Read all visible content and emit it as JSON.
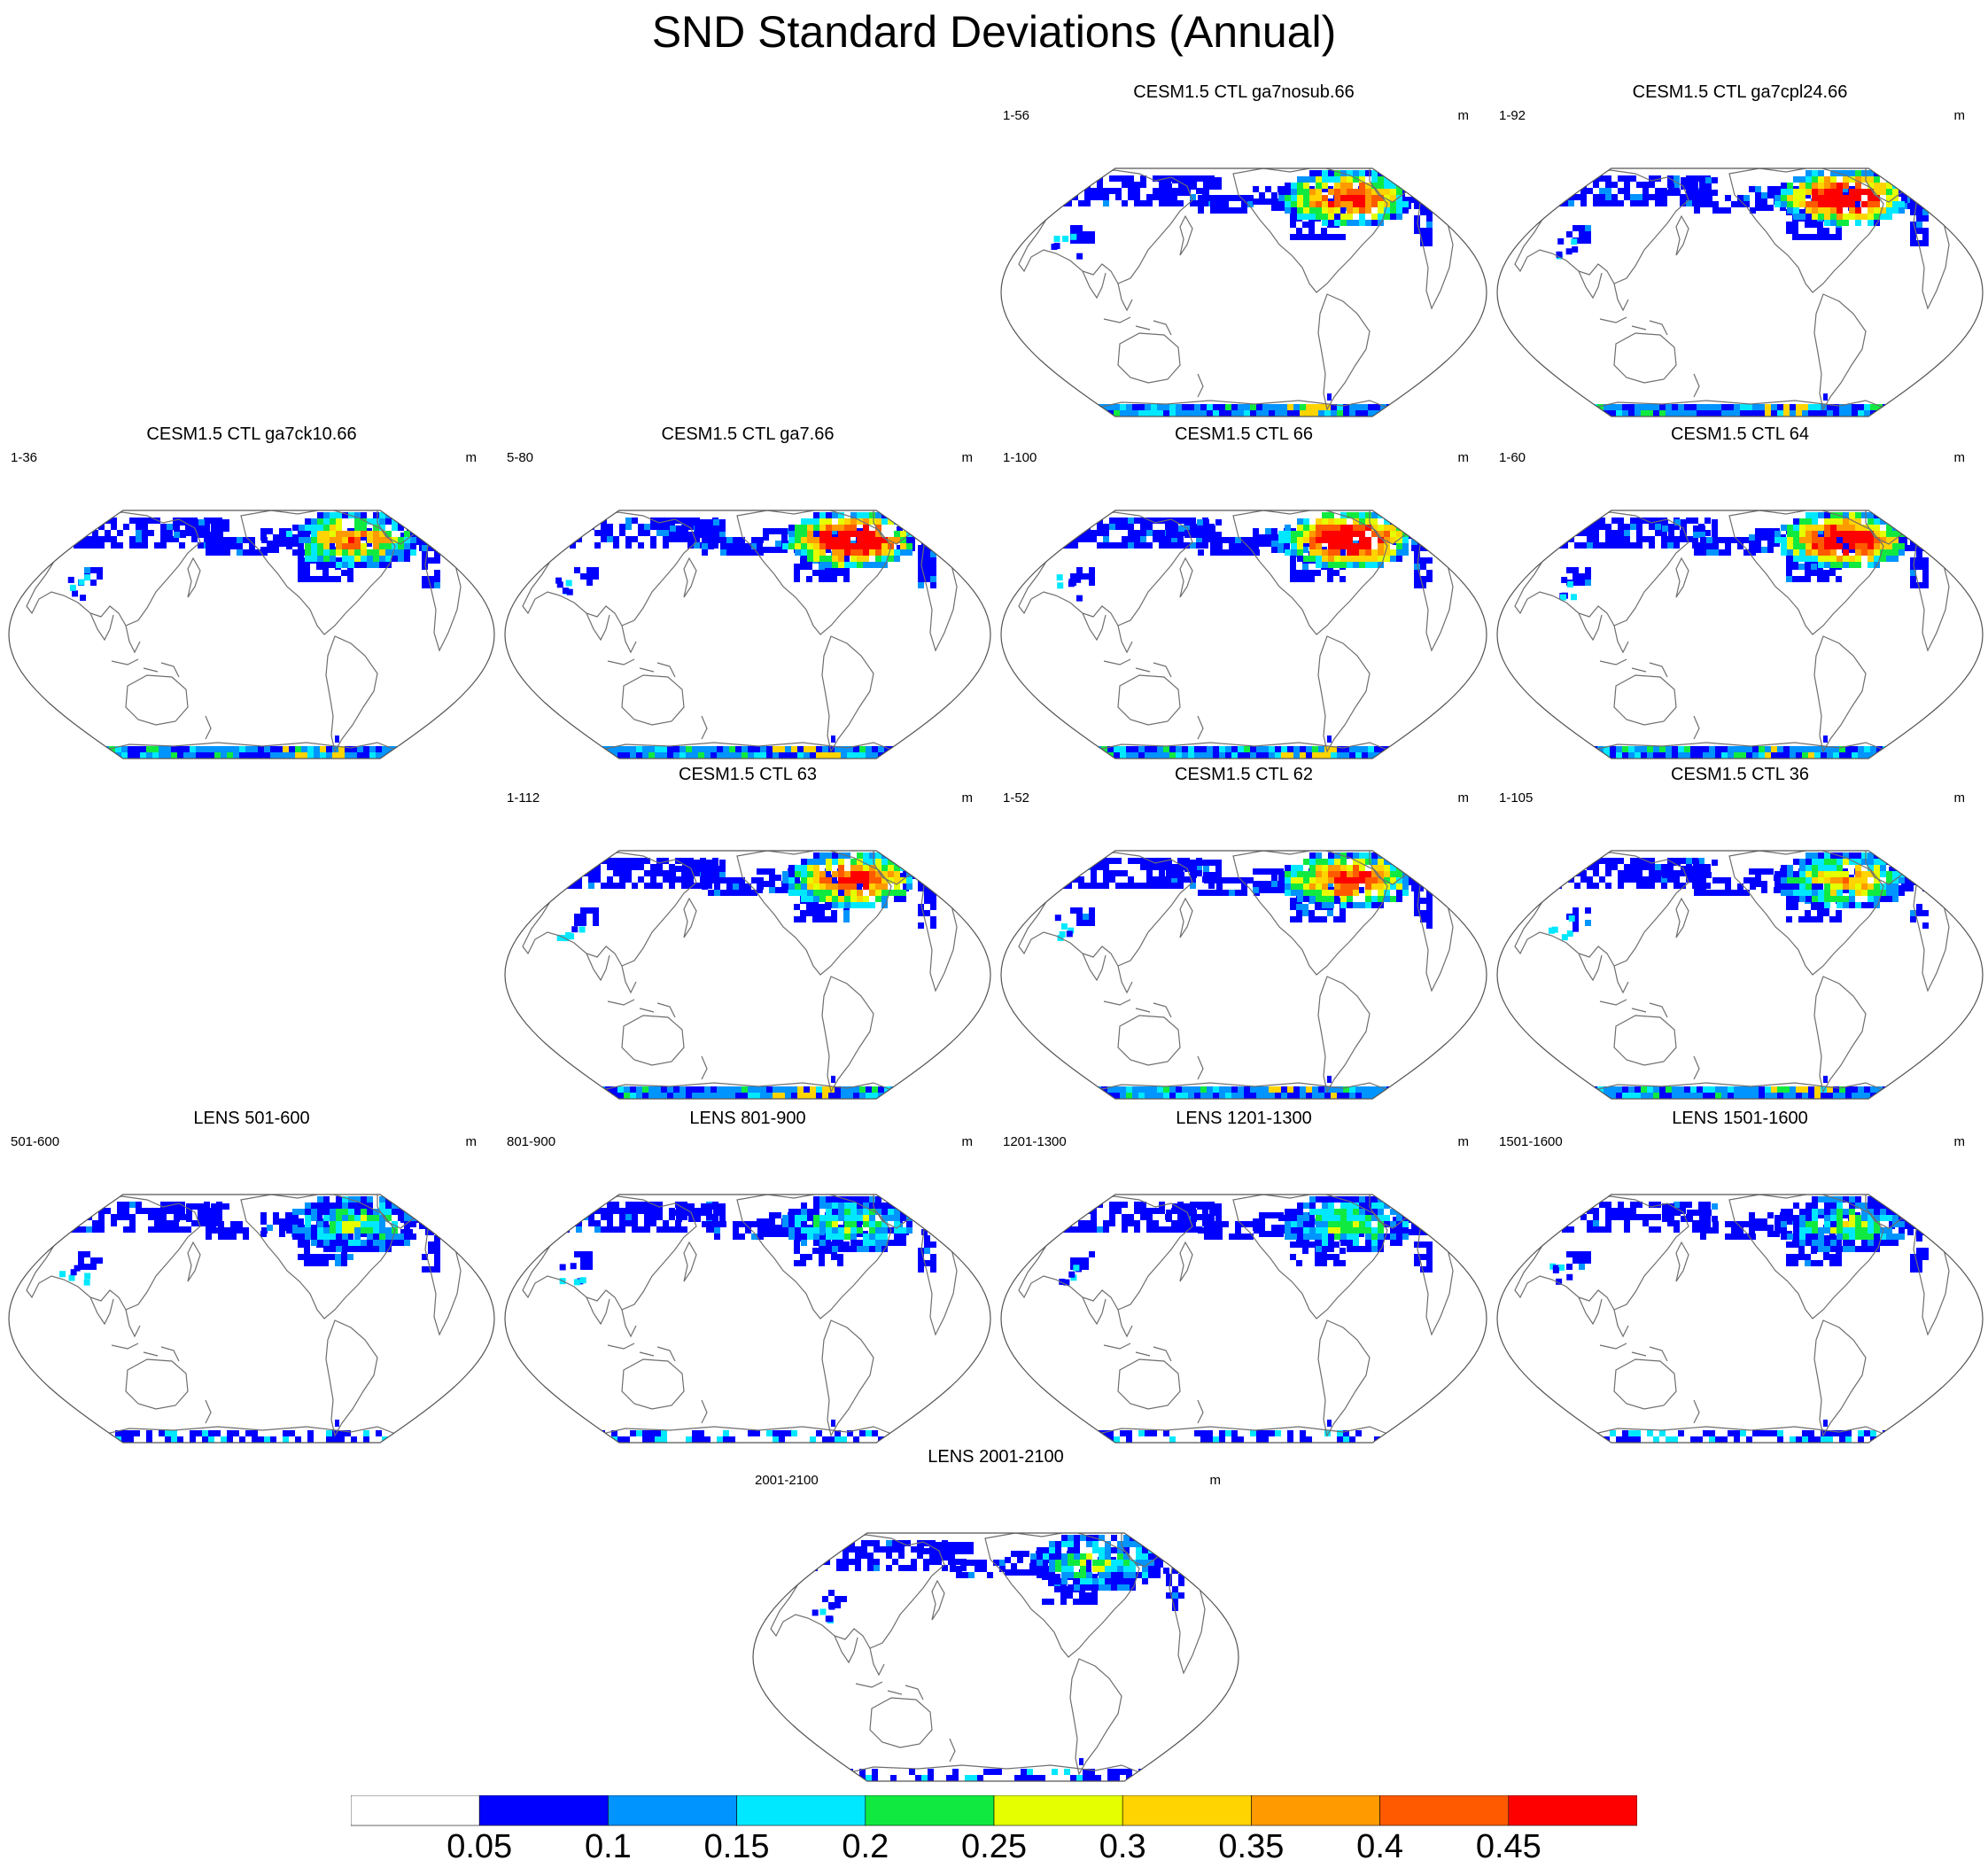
{
  "title": "SND Standard Deviations (Annual)",
  "colors": {
    "levels": [
      "#ffffff",
      "#0000ff",
      "#0094ff",
      "#00e8ff",
      "#10ea40",
      "#e5ff00",
      "#ffd400",
      "#ff9a00",
      "#ff5a00",
      "#ff0000"
    ],
    "coastline": "#6e6e6e"
  },
  "colorbar": {
    "labels": [
      "0.05",
      "0.1",
      "0.15",
      "0.2",
      "0.25",
      "0.3",
      "0.35",
      "0.4",
      "0.45"
    ]
  },
  "projection": "Robinson, centered on the Pacific",
  "panels": [
    {
      "id": "ga7nosub66",
      "title": "CESM1.5 CTL ga7nosub.66",
      "years": "1-56",
      "units": "m",
      "row": 0,
      "col": 2,
      "intensity": 1.0,
      "antarctica": "strong"
    },
    {
      "id": "ga7cpl2466",
      "title": "CESM1.5 CTL ga7cpl24.66",
      "years": "1-92",
      "units": "m",
      "row": 0,
      "col": 3,
      "intensity": 1.25,
      "antarctica": "strong"
    },
    {
      "id": "ga7ck1066",
      "title": "CESM1.5 CTL ga7ck10.66",
      "years": "1-36",
      "units": "m",
      "row": 1,
      "col": 0,
      "intensity": 0.8,
      "antarctica": "strong"
    },
    {
      "id": "ga766",
      "title": "CESM1.5 CTL ga7.66",
      "years": "5-80",
      "units": "m",
      "row": 1,
      "col": 1,
      "intensity": 1.3,
      "antarctica": "strong"
    },
    {
      "id": "ctl66",
      "title": "CESM1.5 CTL 66",
      "years": "1-100",
      "units": "m",
      "row": 1,
      "col": 2,
      "intensity": 1.3,
      "antarctica": "strong"
    },
    {
      "id": "ctl64",
      "title": "CESM1.5 CTL 64",
      "years": "1-60",
      "units": "m",
      "row": 1,
      "col": 3,
      "intensity": 1.2,
      "antarctica": "strong"
    },
    {
      "id": "ctl63",
      "title": "CESM1.5 CTL 63",
      "years": "1-112",
      "units": "m",
      "row": 2,
      "col": 1,
      "intensity": 1.0,
      "antarctica": "strong"
    },
    {
      "id": "ctl62",
      "title": "CESM1.5 CTL 62",
      "years": "1-52",
      "units": "m",
      "row": 2,
      "col": 2,
      "intensity": 1.0,
      "antarctica": "strong"
    },
    {
      "id": "ctl36",
      "title": "CESM1.5 CTL 36",
      "years": "1-105",
      "units": "m",
      "row": 2,
      "col": 3,
      "intensity": 0.7,
      "antarctica": "strong"
    },
    {
      "id": "lens501",
      "title": "LENS 501-600",
      "years": "501-600",
      "units": "m",
      "row": 3,
      "col": 0,
      "intensity": 0.4,
      "antarctica": "weak"
    },
    {
      "id": "lens801",
      "title": "LENS 801-900",
      "years": "801-900",
      "units": "m",
      "row": 3,
      "col": 1,
      "intensity": 0.45,
      "antarctica": "weak"
    },
    {
      "id": "lens1201",
      "title": "LENS 1201-1300",
      "years": "1201-1300",
      "units": "m",
      "row": 3,
      "col": 2,
      "intensity": 0.45,
      "antarctica": "weak"
    },
    {
      "id": "lens1501",
      "title": "LENS 1501-1600",
      "years": "1501-1600",
      "units": "m",
      "row": 3,
      "col": 3,
      "intensity": 0.45,
      "antarctica": "weak"
    },
    {
      "id": "lens2001",
      "title": "LENS 2001-2100",
      "years": "2001-2100",
      "units": "m",
      "row": 4,
      "col": 1.5,
      "intensity": 0.45,
      "antarctica": "weak"
    }
  ]
}
